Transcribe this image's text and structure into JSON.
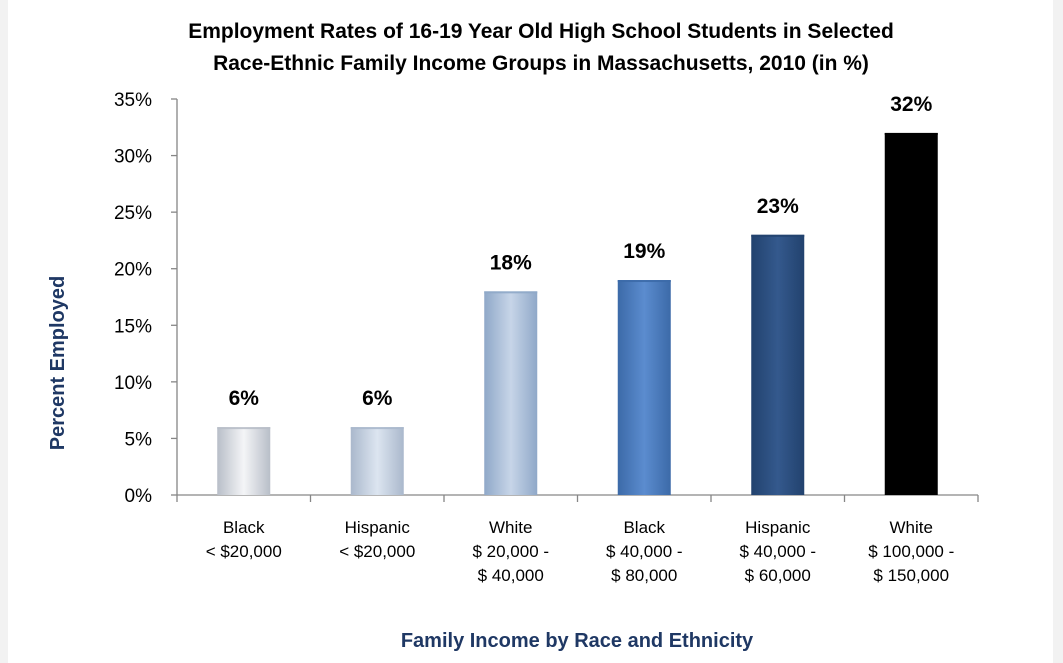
{
  "chart_data": {
    "type": "bar",
    "title": [
      "Employment Rates of 16-19 Year Old High School Students in Selected",
      "Race-Ethnic Family Income Groups in Massachusetts, 2010 (in %)"
    ],
    "xlabel": "Family Income by Race and Ethnicity",
    "ylabel": "Percent Employed",
    "ylim": [
      0,
      35
    ],
    "yticks": [
      0,
      5,
      10,
      15,
      20,
      25,
      30,
      35
    ],
    "ytick_labels": [
      "0%",
      "5%",
      "10%",
      "15%",
      "20%",
      "25%",
      "30%",
      "35%"
    ],
    "grid": false,
    "legend": "none",
    "categories": [
      [
        "Black",
        "< $20,000"
      ],
      [
        "Hispanic",
        "< $20,000"
      ],
      [
        "White",
        "$ 20,000 -",
        "$ 40,000"
      ],
      [
        "Black",
        "$ 40,000 -",
        "$ 80,000"
      ],
      [
        "Hispanic",
        "$ 40,000 -",
        "$ 60,000"
      ],
      [
        "White",
        "$ 100,000 -",
        "$ 150,000"
      ]
    ],
    "values": [
      6,
      6,
      18,
      19,
      23,
      32
    ],
    "data_labels": [
      "6%",
      "6%",
      "18%",
      "19%",
      "23%",
      "32%"
    ],
    "bar_colors": [
      [
        "#b8bec8",
        "#f4f5f7",
        "#b8bec8"
      ],
      [
        "#aab8cc",
        "#dce5f0",
        "#aab8cc"
      ],
      [
        "#8fa8c8",
        "#c7d5e8",
        "#8fa8c8"
      ],
      [
        "#3c6aa8",
        "#5b8ccf",
        "#3c6aa8"
      ],
      [
        "#22426e",
        "#34598d",
        "#22426e"
      ],
      [
        "#000000",
        "#000000",
        "#000000"
      ]
    ],
    "axis_title_color": "#1f3864"
  }
}
